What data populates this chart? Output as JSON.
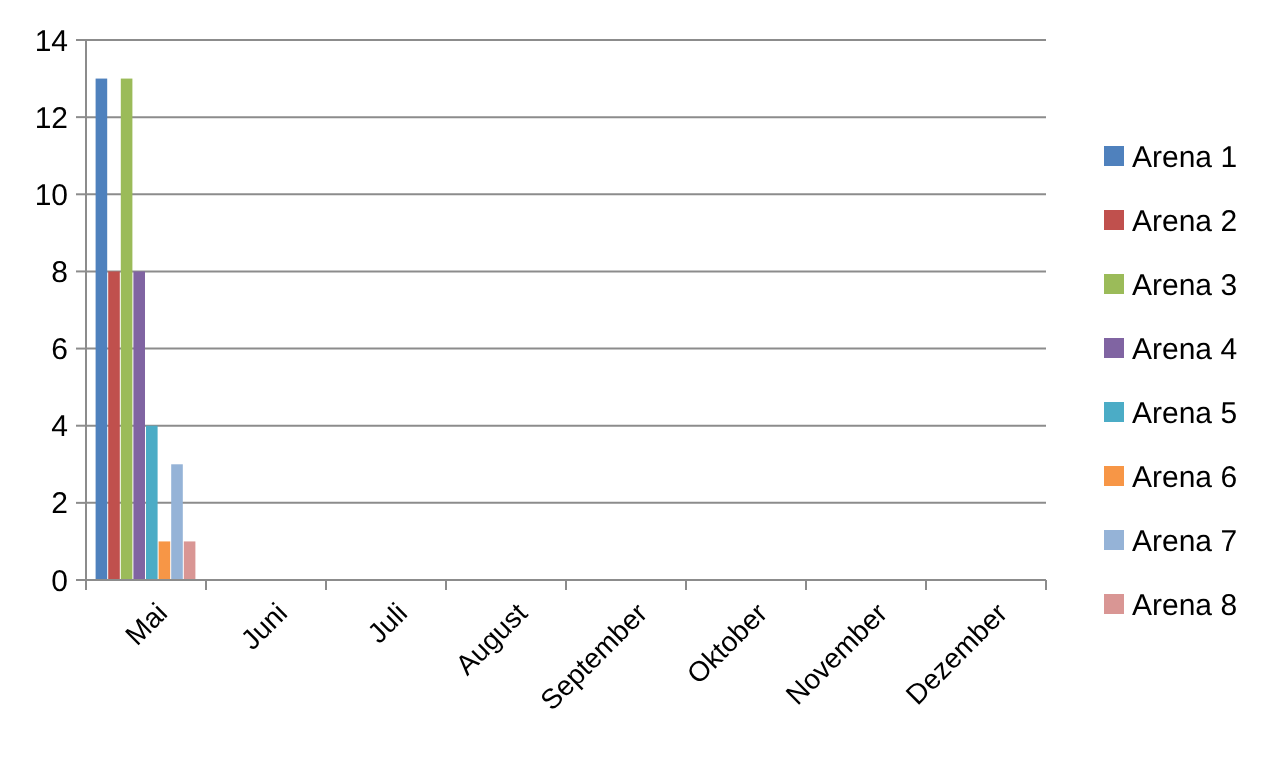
{
  "chart_data": {
    "type": "bar",
    "categories": [
      "Mai",
      "Juni",
      "Juli",
      "August",
      "September",
      "Oktober",
      "November",
      "Dezember"
    ],
    "series": [
      {
        "name": "Arena 1",
        "color": "#4f81bd",
        "values": [
          13,
          null,
          null,
          null,
          null,
          null,
          null,
          null
        ]
      },
      {
        "name": "Arena 2",
        "color": "#c0504d",
        "values": [
          8,
          null,
          null,
          null,
          null,
          null,
          null,
          null
        ]
      },
      {
        "name": "Arena 3",
        "color": "#9bbb59",
        "values": [
          13,
          null,
          null,
          null,
          null,
          null,
          null,
          null
        ]
      },
      {
        "name": "Arena 4",
        "color": "#8064a2",
        "values": [
          8,
          null,
          null,
          null,
          null,
          null,
          null,
          null
        ]
      },
      {
        "name": "Arena 5",
        "color": "#4bacc6",
        "values": [
          4,
          null,
          null,
          null,
          null,
          null,
          null,
          null
        ]
      },
      {
        "name": "Arena 6",
        "color": "#f79646",
        "values": [
          1,
          null,
          null,
          null,
          null,
          null,
          null,
          null
        ]
      },
      {
        "name": "Arena 7",
        "color": "#95b3d7",
        "values": [
          3,
          null,
          null,
          null,
          null,
          null,
          null,
          null
        ]
      },
      {
        "name": "Arena 8",
        "color": "#d99694",
        "values": [
          1,
          null,
          null,
          null,
          null,
          null,
          null,
          null
        ]
      }
    ],
    "ylim": [
      0,
      14
    ],
    "yticks": [
      0,
      2,
      4,
      6,
      8,
      10,
      12,
      14
    ],
    "grid": "y",
    "legend": "right"
  }
}
